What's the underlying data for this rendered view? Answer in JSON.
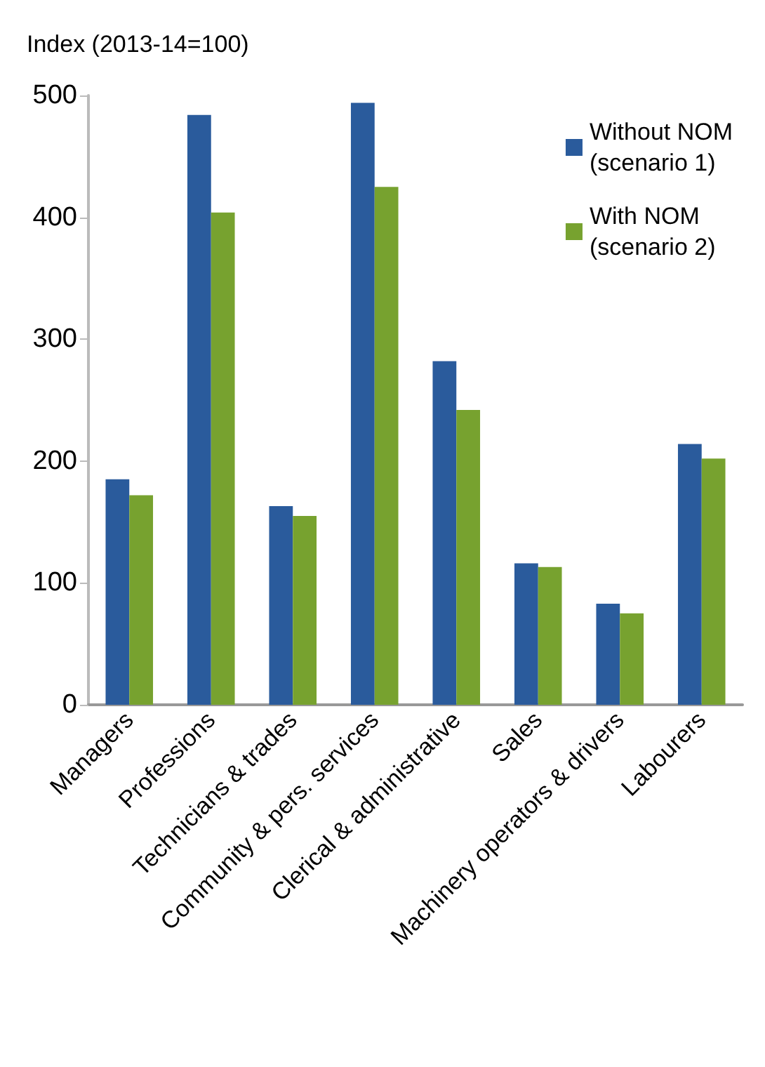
{
  "chart_data": {
    "type": "bar",
    "ylabel": "Index (2013-14=100)",
    "categories": [
      "Managers",
      "Professions",
      "Technicians & trades",
      "Community & pers. services",
      "Clerical & administrative",
      "Sales",
      "Machinery operators & drivers",
      "Labourers"
    ],
    "series": [
      {
        "name": "Without NOM\n(scenario 1)",
        "color": "#2a5b9c",
        "values": [
          185,
          484,
          163,
          494,
          282,
          116,
          83,
          214
        ]
      },
      {
        "name": "With NOM\n(scenario 2)",
        "color": "#77a22f",
        "values": [
          172,
          404,
          155,
          425,
          242,
          113,
          75,
          202
        ]
      }
    ],
    "ylim": [
      0,
      500
    ],
    "yticks": [
      0,
      100,
      200,
      300,
      400,
      500
    ],
    "grid": false,
    "legend": "top right"
  }
}
